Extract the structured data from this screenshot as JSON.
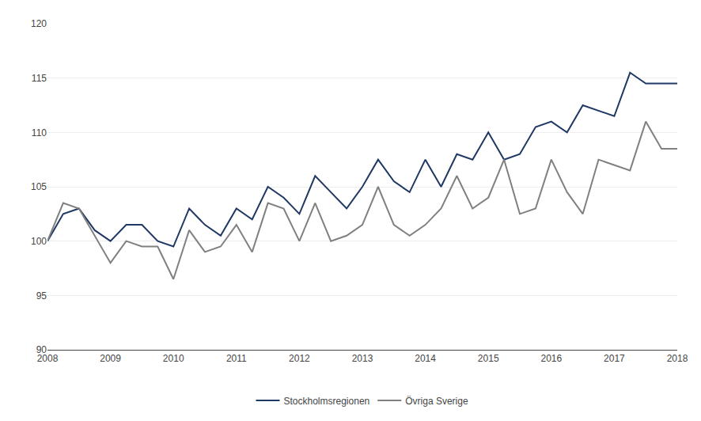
{
  "chart_data": {
    "type": "line",
    "categories": [
      "2008",
      null,
      null,
      null,
      "2009",
      null,
      null,
      null,
      "2010",
      null,
      null,
      null,
      "2011",
      null,
      null,
      null,
      "2012",
      null,
      null,
      null,
      "2013",
      null,
      null,
      null,
      "2014",
      null,
      null,
      null,
      "2015",
      null,
      null,
      null,
      "2016",
      null,
      null,
      null,
      "2017",
      null,
      null,
      null,
      "2018"
    ],
    "series": [
      {
        "name": "Stockholmsregionen",
        "color": "#1F3864",
        "values": [
          100.0,
          102.5,
          103.0,
          101.0,
          100.0,
          101.5,
          101.5,
          100.0,
          99.5,
          103.0,
          101.5,
          100.5,
          103.0,
          102.0,
          105.0,
          104.0,
          102.5,
          106.0,
          104.5,
          103.0,
          105.0,
          107.5,
          105.5,
          104.5,
          107.5,
          105.0,
          108.0,
          107.5,
          110.0,
          107.5,
          108.0,
          110.5,
          111.0,
          110.0,
          112.5,
          112.0,
          111.5,
          115.5,
          114.5,
          114.5,
          114.5
        ]
      },
      {
        "name": "Övriga Sverige",
        "color": "#808080",
        "values": [
          100.0,
          103.5,
          103.0,
          100.5,
          98.0,
          100.0,
          99.5,
          99.5,
          96.5,
          101.0,
          99.0,
          99.5,
          101.5,
          99.0,
          103.5,
          103.0,
          100.0,
          103.5,
          100.0,
          100.5,
          101.5,
          105.0,
          101.5,
          100.5,
          101.5,
          103.0,
          106.0,
          103.0,
          104.0,
          107.5,
          102.5,
          103.0,
          107.5,
          104.5,
          102.5,
          107.5,
          107.0,
          106.5,
          111.0,
          108.5,
          108.5
        ]
      }
    ],
    "ylim": [
      90,
      120
    ],
    "yticks": [
      90,
      95,
      100,
      105,
      110,
      115,
      120
    ],
    "grid": true,
    "legend": "bottom"
  }
}
